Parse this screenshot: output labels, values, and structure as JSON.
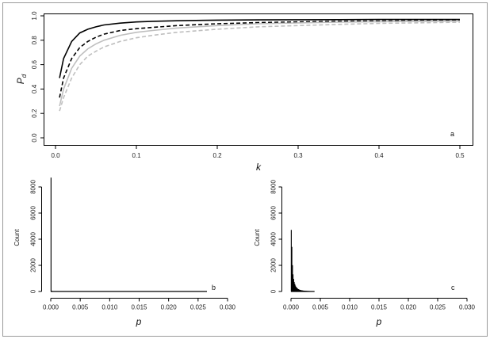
{
  "chart_data": [
    {
      "panel": "a",
      "type": "line",
      "xlabel": "k",
      "ylabel": "P_d",
      "ylabel_main": "P",
      "ylabel_sub": "d",
      "xlim": [
        0,
        0.5
      ],
      "ylim": [
        0,
        1.0
      ],
      "xticks": [
        "0.0",
        "0.1",
        "0.2",
        "0.3",
        "0.4",
        "0.5"
      ],
      "yticks": [
        "0.0",
        "0.2",
        "0.4",
        "0.6",
        "0.8",
        "1.0"
      ],
      "grid": false,
      "x": [
        0.005,
        0.01,
        0.02,
        0.03,
        0.04,
        0.05,
        0.06,
        0.08,
        0.1,
        0.12,
        0.15,
        0.2,
        0.25,
        0.3,
        0.35,
        0.4,
        0.45,
        0.5
      ],
      "series": [
        {
          "color": "#000000",
          "dashed": false,
          "values": [
            0.49,
            0.65,
            0.79,
            0.86,
            0.89,
            0.91,
            0.925,
            0.94,
            0.95,
            0.955,
            0.96,
            0.965,
            0.967,
            0.968,
            0.969,
            0.97,
            0.97,
            0.97
          ]
        },
        {
          "color": "#000000",
          "dashed": true,
          "values": [
            0.33,
            0.49,
            0.65,
            0.74,
            0.79,
            0.825,
            0.85,
            0.88,
            0.895,
            0.905,
            0.92,
            0.935,
            0.945,
            0.95,
            0.955,
            0.958,
            0.96,
            0.962
          ]
        },
        {
          "color": "#bfbfbf",
          "dashed": false,
          "values": [
            0.26,
            0.4,
            0.57,
            0.67,
            0.73,
            0.77,
            0.8,
            0.84,
            0.865,
            0.88,
            0.9,
            0.92,
            0.935,
            0.942,
            0.948,
            0.952,
            0.955,
            0.958
          ]
        },
        {
          "color": "#bfbfbf",
          "dashed": true,
          "values": [
            0.22,
            0.33,
            0.49,
            0.6,
            0.67,
            0.71,
            0.745,
            0.79,
            0.82,
            0.84,
            0.865,
            0.89,
            0.91,
            0.92,
            0.93,
            0.938,
            0.943,
            0.948
          ]
        }
      ]
    },
    {
      "panel": "b",
      "type": "bar",
      "xlabel": "p",
      "ylabel": "Count",
      "xlim": [
        0,
        0.03
      ],
      "ylim": [
        0,
        8000
      ],
      "xticks": [
        "0.000",
        "0.005",
        "0.010",
        "0.015",
        "0.020",
        "0.025",
        "0.030"
      ],
      "yticks": [
        "0",
        "2000",
        "4000",
        "6000",
        "8000"
      ],
      "bin_width": 0.0001,
      "bins_start": 0.0,
      "counts": [
        8700,
        40,
        20,
        15,
        10,
        10,
        8,
        6,
        5,
        5
      ],
      "baseline_end": 0.0265
    },
    {
      "panel": "c",
      "type": "bar",
      "xlabel": "p",
      "ylabel": "Count",
      "xlim": [
        0,
        0.03
      ],
      "ylim": [
        0,
        8000
      ],
      "xticks": [
        "0.000",
        "0.005",
        "0.010",
        "0.015",
        "0.020",
        "0.025",
        "0.030"
      ],
      "yticks": [
        "0",
        "2000",
        "4000",
        "6000",
        "8000"
      ],
      "bin_width": 0.0001,
      "bins_start": 0.0,
      "counts": [
        4700,
        3400,
        2000,
        1300,
        950,
        720,
        560,
        440,
        350,
        290,
        240,
        200,
        170,
        145,
        125,
        108,
        95,
        84,
        75,
        67,
        60,
        54,
        49,
        44,
        40,
        36,
        33,
        30,
        27,
        25,
        23,
        21,
        19,
        17,
        16,
        14,
        13,
        12,
        11,
        10
      ],
      "baseline_end": 0.004
    }
  ]
}
